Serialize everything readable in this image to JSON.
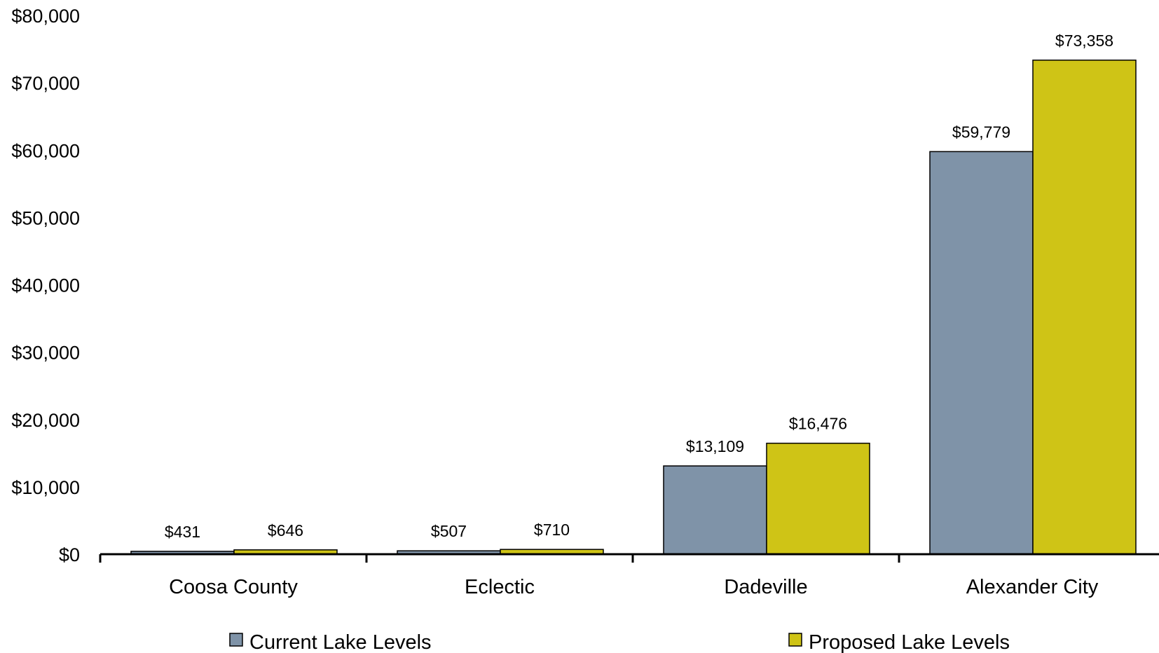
{
  "chart_data": {
    "type": "bar",
    "title": "",
    "xlabel": "",
    "ylabel": "",
    "categories": [
      "Coosa County",
      "Eclectic",
      "Dadeville",
      "Alexander City"
    ],
    "series": [
      {
        "name": "Current Lake Levels",
        "color": "#7f93a8",
        "values": [
          431,
          507,
          13109,
          59779
        ],
        "labels": [
          "$431",
          "$507",
          "$13,109",
          "$59,779"
        ]
      },
      {
        "name": "Proposed Lake Levels",
        "color": "#cfc416",
        "values": [
          646,
          710,
          16476,
          73358
        ],
        "labels": [
          "$646",
          "$710",
          "$16,476",
          "$73,358"
        ]
      }
    ],
    "ylim": [
      0,
      80000
    ],
    "yticks": [
      0,
      10000,
      20000,
      30000,
      40000,
      50000,
      60000,
      70000,
      80000
    ],
    "ytick_labels": [
      "$0",
      "$10,000",
      "$20,000",
      "$30,000",
      "$40,000",
      "$50,000",
      "$60,000",
      "$70,000",
      "$80,000"
    ],
    "grid": false,
    "legend": "bottom"
  }
}
